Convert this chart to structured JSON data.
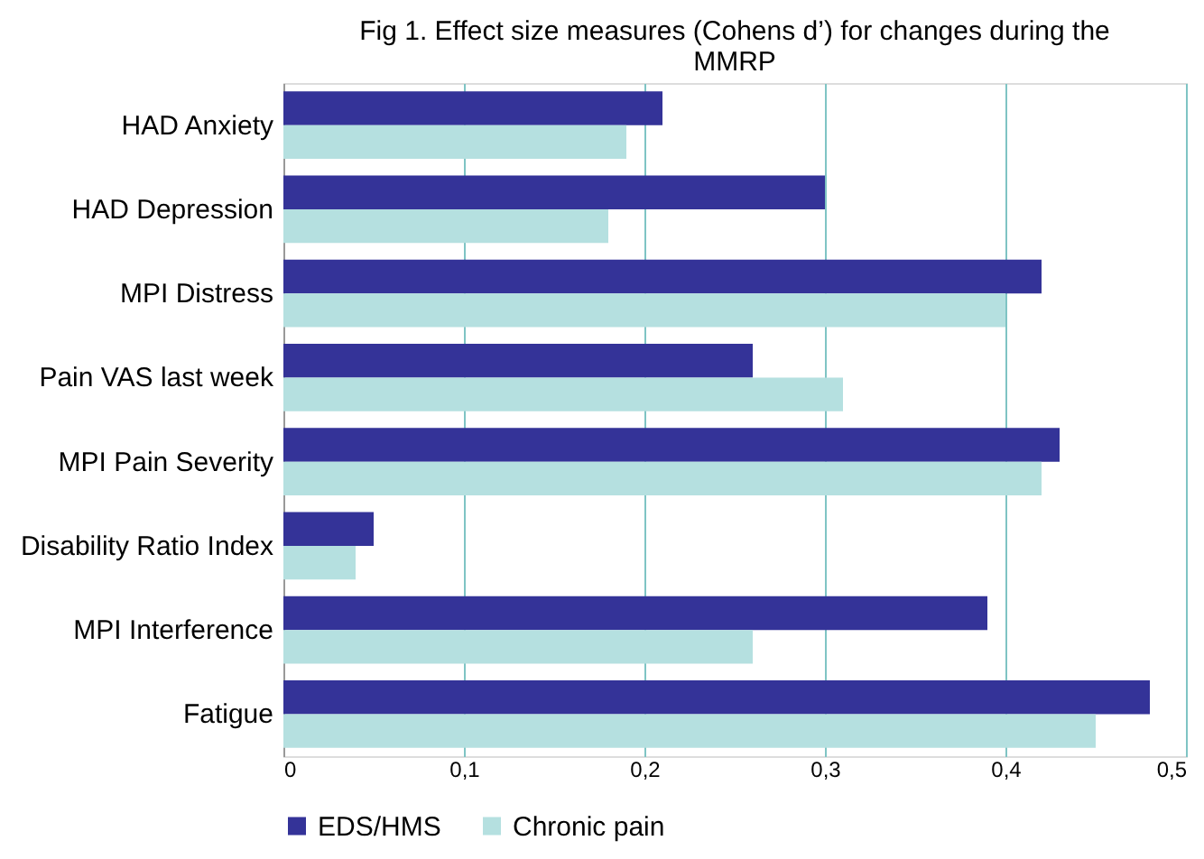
{
  "chart_data": {
    "type": "bar",
    "orientation": "horizontal",
    "title": "Fig 1. Effect size measures (Cohens d’) for changes during the MMRP",
    "categories": [
      "HAD Anxiety",
      "HAD Depression",
      "MPI Distress",
      "Pain VAS last week",
      "MPI Pain Severity",
      "Disability Ratio Index",
      "MPI Interference",
      "Fatigue"
    ],
    "series": [
      {
        "name": "EDS/HMS",
        "color": "#343398",
        "values": [
          0.21,
          0.3,
          0.42,
          0.26,
          0.43,
          0.05,
          0.39,
          0.48
        ]
      },
      {
        "name": "Chronic pain",
        "color": "#b5e0e0",
        "values": [
          0.19,
          0.18,
          0.4,
          0.31,
          0.42,
          0.04,
          0.26,
          0.45
        ]
      }
    ],
    "xlim": [
      0,
      0.5
    ],
    "xticks": [
      0,
      {
        "value": 0.1,
        "label": "0,1"
      },
      {
        "value": 0.2,
        "label": "0,2"
      },
      {
        "value": 0.3,
        "label": "0,3"
      },
      {
        "value": 0.4,
        "label": "0,4"
      },
      {
        "value": 0.5,
        "label": "0,5"
      }
    ],
    "grid": "x",
    "legend": "bottom"
  }
}
